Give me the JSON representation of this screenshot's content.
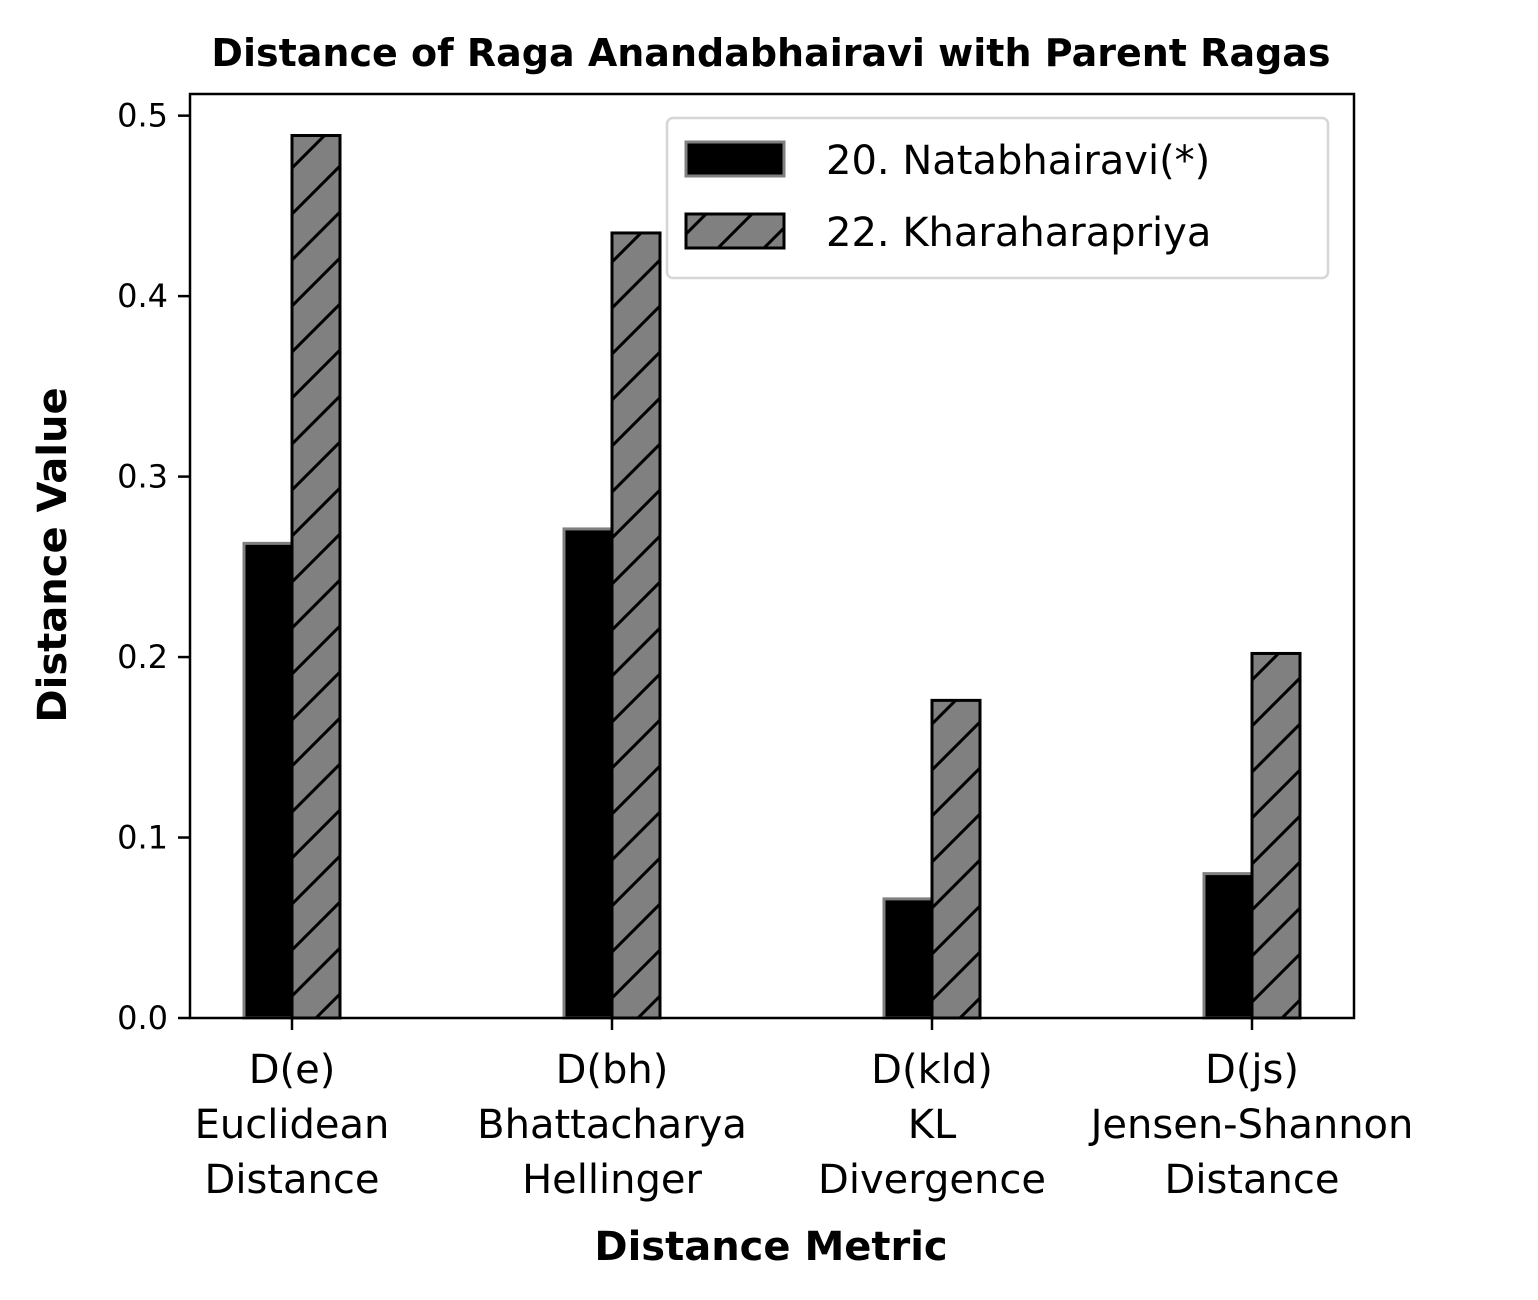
{
  "chart_data": {
    "type": "bar",
    "title": "Distance of Raga Anandabhairavi with Parent Ragas",
    "xlabel": "Distance Metric",
    "ylabel": "Distance Value",
    "categories": [
      "D(e)\nEuclidean\nDistance",
      "D(bh)\nBhattacharya\nHellinger",
      "D(kld)\nKL\nDivergence",
      "D(js)\nJensen-Shannon\nDistance"
    ],
    "series": [
      {
        "name": "20. Natabhairavi(*)",
        "values": [
          0.263,
          0.271,
          0.066,
          0.08
        ],
        "color": "#000000",
        "edge": "#808080",
        "hatch": false
      },
      {
        "name": "22. Kharaharapriya",
        "values": [
          0.489,
          0.435,
          0.176,
          0.202
        ],
        "color": "#808080",
        "edge": "#000000",
        "hatch": true
      }
    ],
    "ylim": [
      0,
      0.512
    ],
    "yticks": [
      "0.0",
      "0.1",
      "0.2",
      "0.3",
      "0.4",
      "0.5"
    ],
    "ytick_values": [
      0,
      0.1,
      0.2,
      0.3,
      0.4,
      0.5
    ],
    "grid": false,
    "legend_position": "top-right"
  }
}
